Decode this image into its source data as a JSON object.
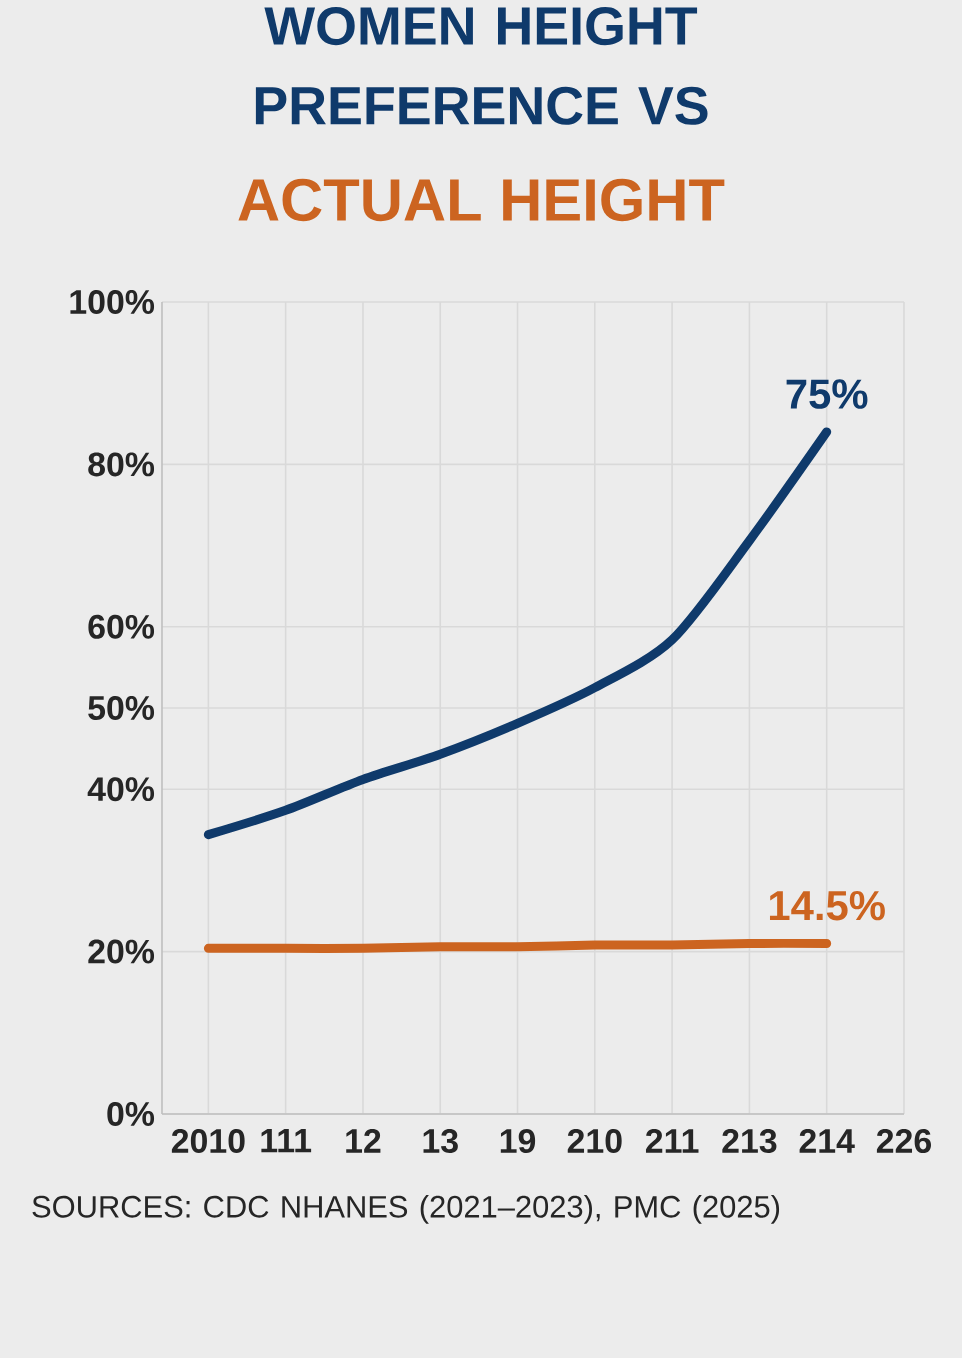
{
  "chart_data": {
    "type": "line",
    "title": "WOMEN HEIGHT PREFERENCE VS",
    "subtitle": "ACTUAL HEIGHT",
    "categories": [
      "2010",
      "111",
      "12",
      "13",
      "19",
      "210",
      "211",
      "213",
      "214",
      "226"
    ],
    "series": [
      {
        "color": "#0f3a6b",
        "values": [
          34.4,
          37.4,
          41.2,
          44.3,
          48.1,
          52.5,
          58.4,
          70.6,
          84,
          null
        ]
      },
      {
        "color": "#cc6420",
        "values": [
          20.4,
          20.4,
          20.4,
          20.6,
          20.6,
          20.8,
          20.8,
          21,
          21,
          null
        ]
      }
    ],
    "ylim": [
      0,
      100
    ],
    "yticks": [
      {
        "value": 0,
        "label": "0%"
      },
      {
        "value": 20,
        "label": "20%"
      },
      {
        "value": 40,
        "label": "40%"
      },
      {
        "value": 50,
        "label": "50%"
      },
      {
        "value": 60,
        "label": "60%"
      },
      {
        "value": 80,
        "label": "80%"
      },
      {
        "value": 100,
        "label": "100%"
      }
    ],
    "grid": true,
    "annotations": [
      "75%",
      "14.5%",
      "SOURCES: CDC NHANES (2021–2023), PMC (2025)"
    ]
  }
}
